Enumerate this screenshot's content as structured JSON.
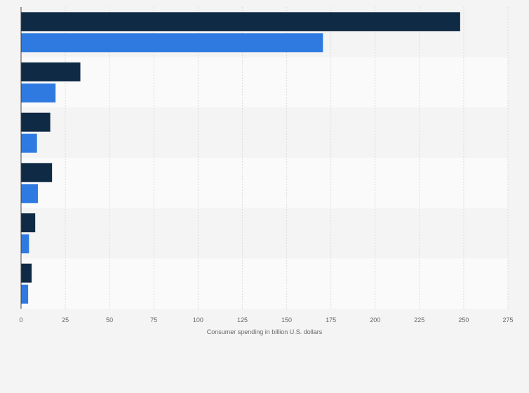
{
  "chart_data": {
    "type": "bar",
    "orientation": "horizontal",
    "title": "",
    "xlabel": "Consumer spending in billion U.S. dollars",
    "ylabel": "",
    "categories": [
      "",
      "",
      "",
      "",
      "",
      ""
    ],
    "xlim": [
      0,
      275
    ],
    "x_ticks": [
      "0",
      "25",
      "50",
      "75",
      "100",
      "125",
      "150",
      "175",
      "200",
      "225",
      "250",
      "275"
    ],
    "grid": true,
    "legend": "none",
    "series": [
      {
        "color": "#0f2a45",
        "values": [
          248,
          33.5,
          16.5,
          17.5,
          8,
          6
        ]
      },
      {
        "color": "#2f7ae0",
        "values": [
          170.5,
          19.5,
          9,
          9.5,
          4.5,
          4
        ]
      }
    ],
    "band_colors": [
      "#f4f4f4",
      "#fafafa"
    ],
    "grid_color": "#dcdcdc",
    "axis_color": "#444444"
  }
}
